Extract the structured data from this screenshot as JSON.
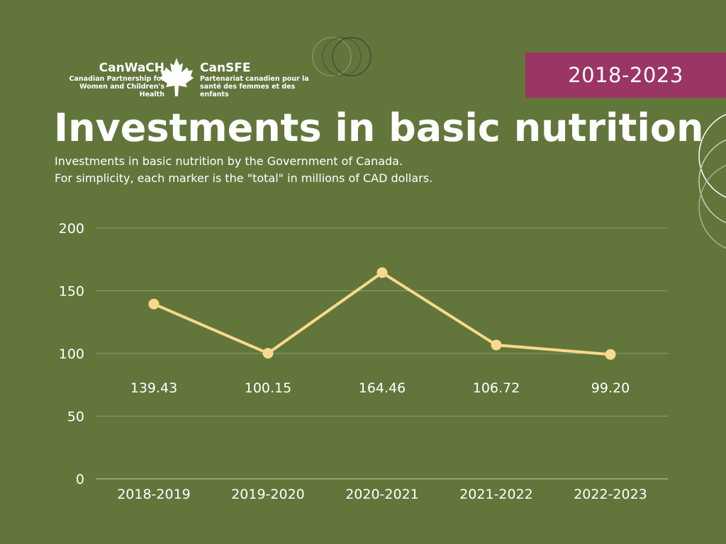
{
  "logo": {
    "en_name": "CanWaCH",
    "en_sub_1": "Canadian Partnership for",
    "en_sub_2": "Women and Children's Health",
    "fr_name": "CanSFE",
    "fr_sub_1": "Partenariat canadien pour la",
    "fr_sub_2": "santé des femmes et des enfants"
  },
  "badge": {
    "years": "2018-2023"
  },
  "header": {
    "title": "Investments in basic nutrition",
    "subtitle_1": "Investments in basic nutrition by the Government of Canada.",
    "subtitle_2": "For simplicity, each marker is the \"total\" in millions of CAD dollars."
  },
  "colors": {
    "background": "#62763c",
    "line": "#f9d98b",
    "badge": "#9a3565",
    "grid": "#8c9c6a"
  },
  "chart_data": {
    "type": "line",
    "categories": [
      "2018-2019",
      "2019-2020",
      "2020-2021",
      "2021-2022",
      "2022-2023"
    ],
    "values": [
      139.43,
      100.15,
      164.46,
      106.72,
      99.2
    ],
    "value_labels": [
      "139.43",
      "100.15",
      "164.46",
      "106.72",
      "99.20"
    ],
    "yticks": [
      0,
      50,
      100,
      150,
      200
    ],
    "ylim": [
      0,
      200
    ],
    "title": "Investments in basic nutrition",
    "xlabel": "",
    "ylabel": "",
    "grid": true
  }
}
